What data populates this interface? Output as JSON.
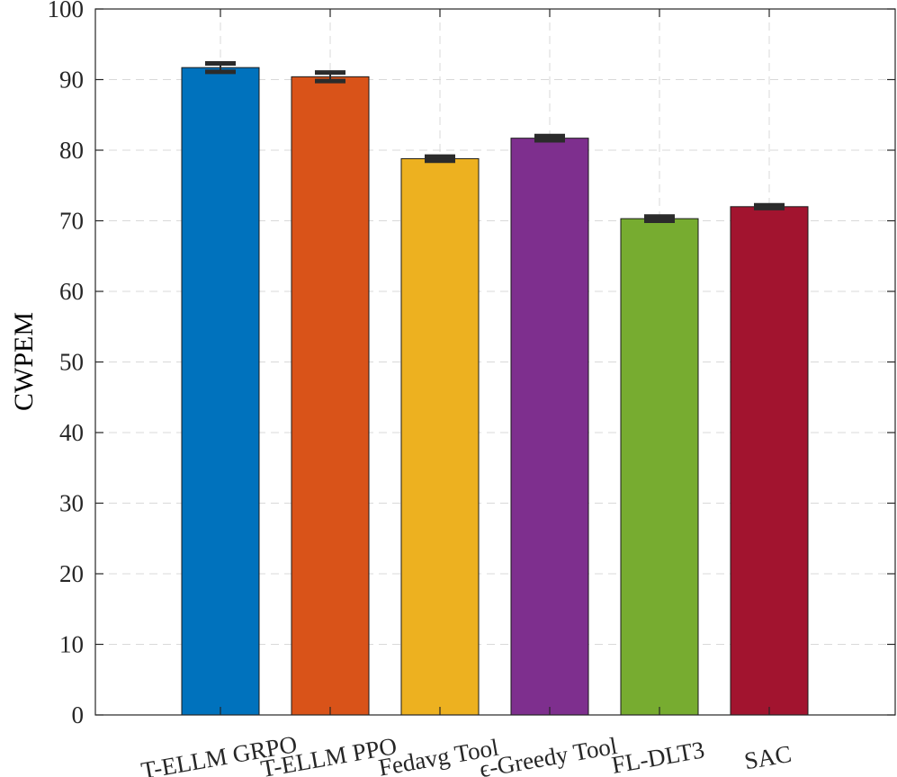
{
  "chart_data": {
    "type": "bar",
    "title": "",
    "xlabel": "",
    "ylabel": "CWPEM",
    "ylim": [
      0,
      100
    ],
    "yticks": [
      0,
      10,
      20,
      30,
      40,
      50,
      60,
      70,
      80,
      90,
      100
    ],
    "grid": true,
    "categories": [
      "T-ELLM GRPO",
      "T-ELLM PPO",
      "Fedavg Tool",
      "ϵ-Greedy Tool",
      "FL-DLT3",
      "SAC"
    ],
    "values": [
      91.7,
      90.4,
      78.8,
      81.7,
      70.3,
      72.0
    ],
    "errors": [
      0.6,
      0.6,
      0.3,
      0.3,
      0.3,
      0.2
    ],
    "colors": [
      "#0072BD",
      "#D95319",
      "#EDB120",
      "#7E2F8E",
      "#77AC30",
      "#A2142F"
    ]
  }
}
